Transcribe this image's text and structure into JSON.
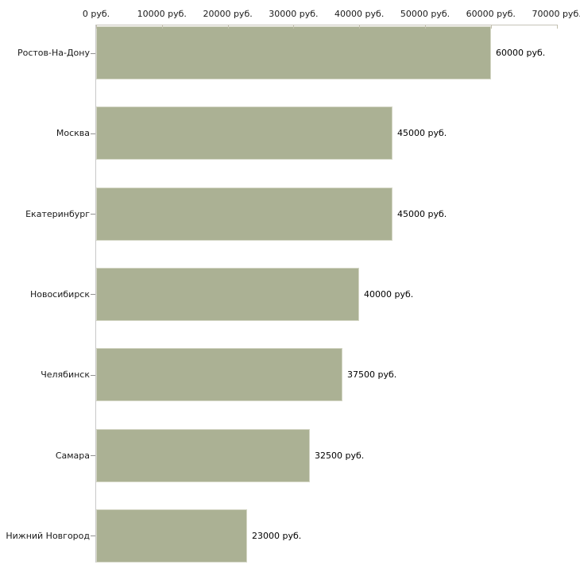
{
  "chart_data": {
    "type": "bar",
    "orientation": "horizontal",
    "title": "",
    "xlabel": "",
    "ylabel": "",
    "categories": [
      "Ростов-На-Дону",
      "Москва",
      "Екатеринбург",
      "Новосибирск",
      "Челябинск",
      "Самара",
      "Нижний Новгород"
    ],
    "values": [
      60000,
      45000,
      45000,
      40000,
      37500,
      32500,
      23000
    ],
    "value_labels": [
      "60000 руб.",
      "45000 руб.",
      "45000 руб.",
      "40000 руб.",
      "37500 руб.",
      "32500 руб.",
      "23000 руб."
    ],
    "x_tick_values": [
      0,
      10000,
      20000,
      30000,
      40000,
      50000,
      60000,
      70000
    ],
    "x_tick_labels": [
      "0 руб.",
      "10000 руб.",
      "20000 руб.",
      "30000 руб.",
      "40000 руб.",
      "50000 руб.",
      "60000 руб.",
      "70000 руб."
    ],
    "xlim": [
      0,
      70000
    ],
    "unit": "руб.",
    "axis_position": "top",
    "grid": false,
    "legend": null,
    "bar_color": "#abb194",
    "bar_border_color": "#d5d7c6",
    "axis_line_color": "#c6c3b8",
    "text_color": "#1a1a1a"
  }
}
